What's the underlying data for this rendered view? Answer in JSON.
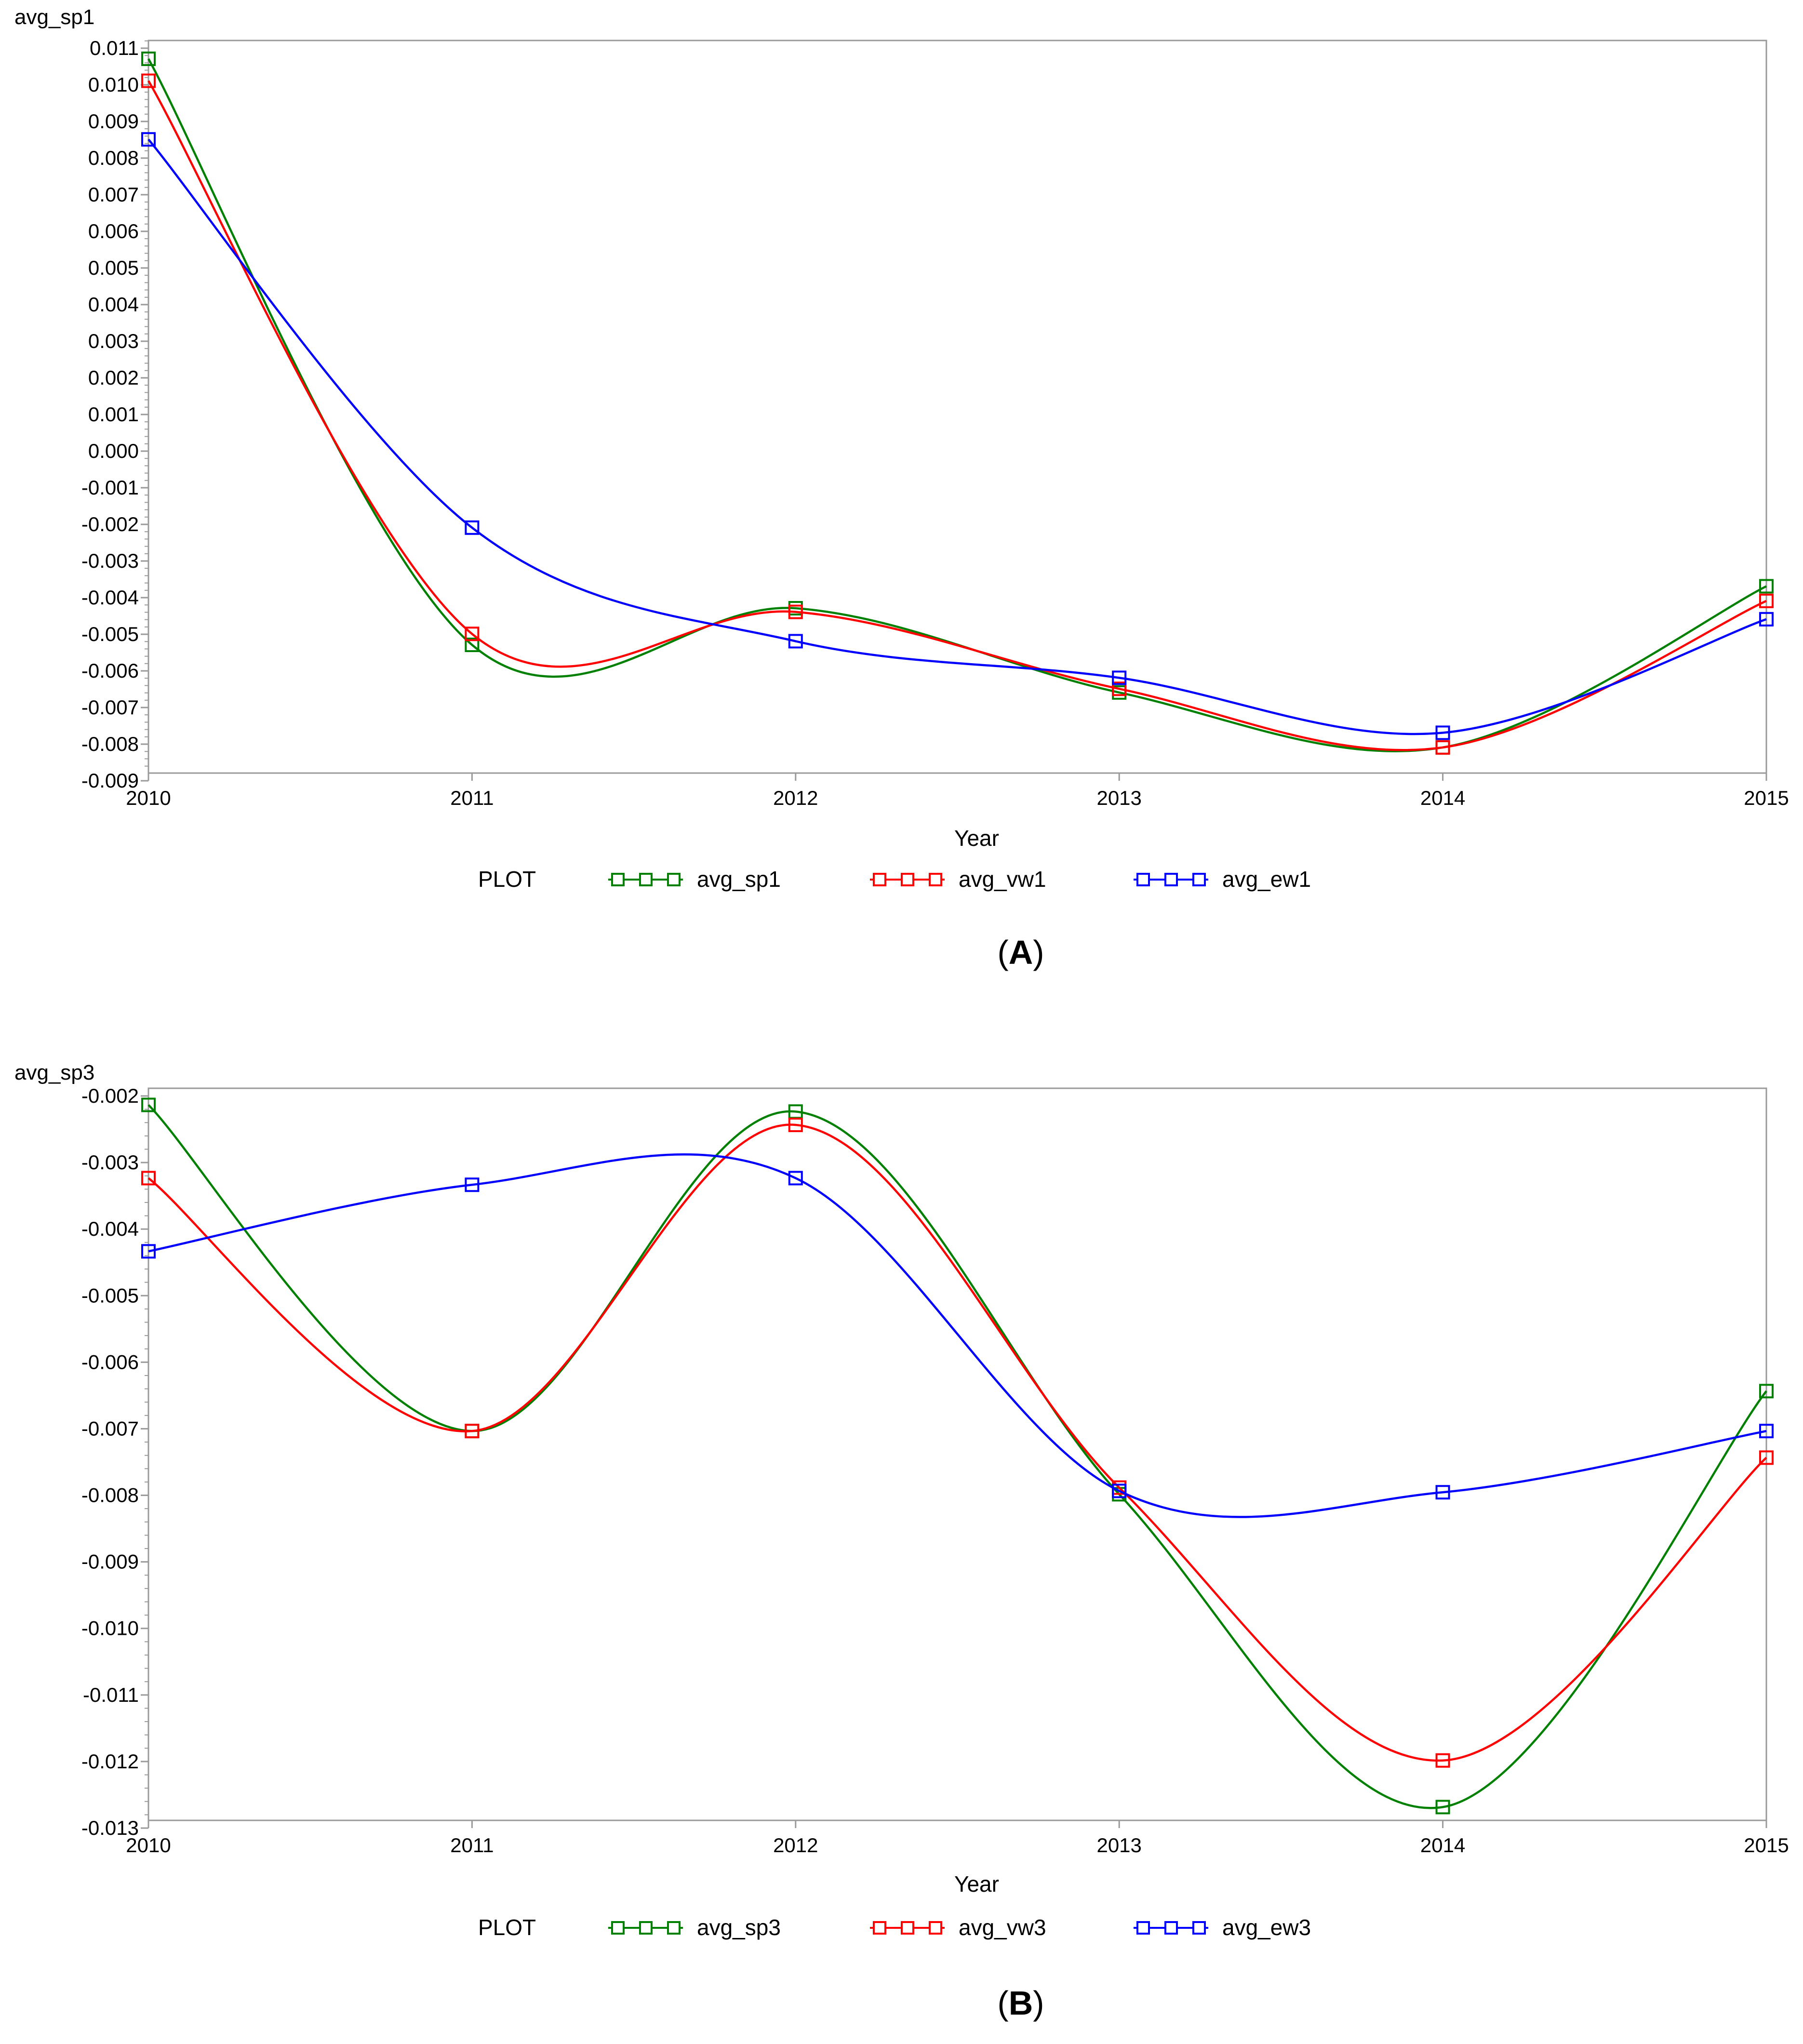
{
  "chart_data": [
    {
      "type": "line",
      "panel_label": "A",
      "ylabel": "avg_sp1",
      "xlabel": "Year",
      "legend_title": "PLOT",
      "legend_position": "bottom",
      "grid": false,
      "x": [
        2010,
        2011,
        2012,
        2013,
        2014,
        2015
      ],
      "xlim": [
        2010,
        2015
      ],
      "ylim": [
        -0.009,
        0.011
      ],
      "y_ticks": [
        "0.011",
        "0.010",
        "0.009",
        "0.008",
        "0.007",
        "0.006",
        "0.005",
        "0.004",
        "0.003",
        "0.002",
        "0.001",
        "0.000",
        "-0.001",
        "-0.002",
        "-0.003",
        "-0.004",
        "-0.005",
        "-0.006",
        "-0.007",
        "-0.008",
        "-0.009"
      ],
      "y_tick_values": [
        0.011,
        0.01,
        0.009,
        0.008,
        0.007,
        0.006,
        0.005,
        0.004,
        0.003,
        0.002,
        0.001,
        0.0,
        -0.001,
        -0.002,
        -0.003,
        -0.004,
        -0.005,
        -0.006,
        -0.007,
        -0.008,
        -0.009
      ],
      "x_ticks": [
        "2010",
        "2011",
        "2012",
        "2013",
        "2014",
        "2015"
      ],
      "series": [
        {
          "name": "avg_sp1",
          "color": "#008000",
          "values": [
            0.0105,
            -0.0055,
            -0.0045,
            -0.0068,
            -0.0083,
            -0.0039
          ]
        },
        {
          "name": "avg_vw1",
          "color": "#ff0000",
          "values": [
            0.0099,
            -0.0052,
            -0.0046,
            -0.0067,
            -0.0083,
            -0.0043
          ]
        },
        {
          "name": "avg_ew1",
          "color": "#0000ff",
          "values": [
            0.0083,
            -0.0023,
            -0.0054,
            -0.0064,
            -0.0079,
            -0.0048
          ]
        }
      ]
    },
    {
      "type": "line",
      "panel_label": "B",
      "ylabel": "avg_sp3",
      "xlabel": "Year",
      "legend_title": "PLOT",
      "legend_position": "bottom",
      "grid": false,
      "x": [
        2010,
        2011,
        2012,
        2013,
        2014,
        2015
      ],
      "xlim": [
        2010,
        2015
      ],
      "ylim": [
        -0.013,
        -0.002
      ],
      "y_ticks": [
        "-0.002",
        "-0.003",
        "-0.004",
        "-0.005",
        "-0.006",
        "-0.007",
        "-0.008",
        "-0.009",
        "-0.010",
        "-0.011",
        "-0.012",
        "-0.013"
      ],
      "y_tick_values": [
        -0.002,
        -0.003,
        -0.004,
        -0.005,
        -0.006,
        -0.007,
        -0.008,
        -0.009,
        -0.01,
        -0.011,
        -0.012,
        -0.013
      ],
      "x_ticks": [
        "2010",
        "2011",
        "2012",
        "2013",
        "2014",
        "2015"
      ],
      "series": [
        {
          "name": "avg_sp3",
          "color": "#008000",
          "values": [
            -0.00225,
            -0.00715,
            -0.00235,
            -0.0081,
            -0.0128,
            -0.00655
          ]
        },
        {
          "name": "avg_vw3",
          "color": "#ff0000",
          "values": [
            -0.00335,
            -0.00715,
            -0.00255,
            -0.008,
            -0.0121,
            -0.00755
          ]
        },
        {
          "name": "avg_ew3",
          "color": "#0000ff",
          "values": [
            -0.00445,
            -0.00345,
            -0.00335,
            -0.00805,
            -0.00807,
            -0.00715
          ]
        }
      ]
    }
  ]
}
